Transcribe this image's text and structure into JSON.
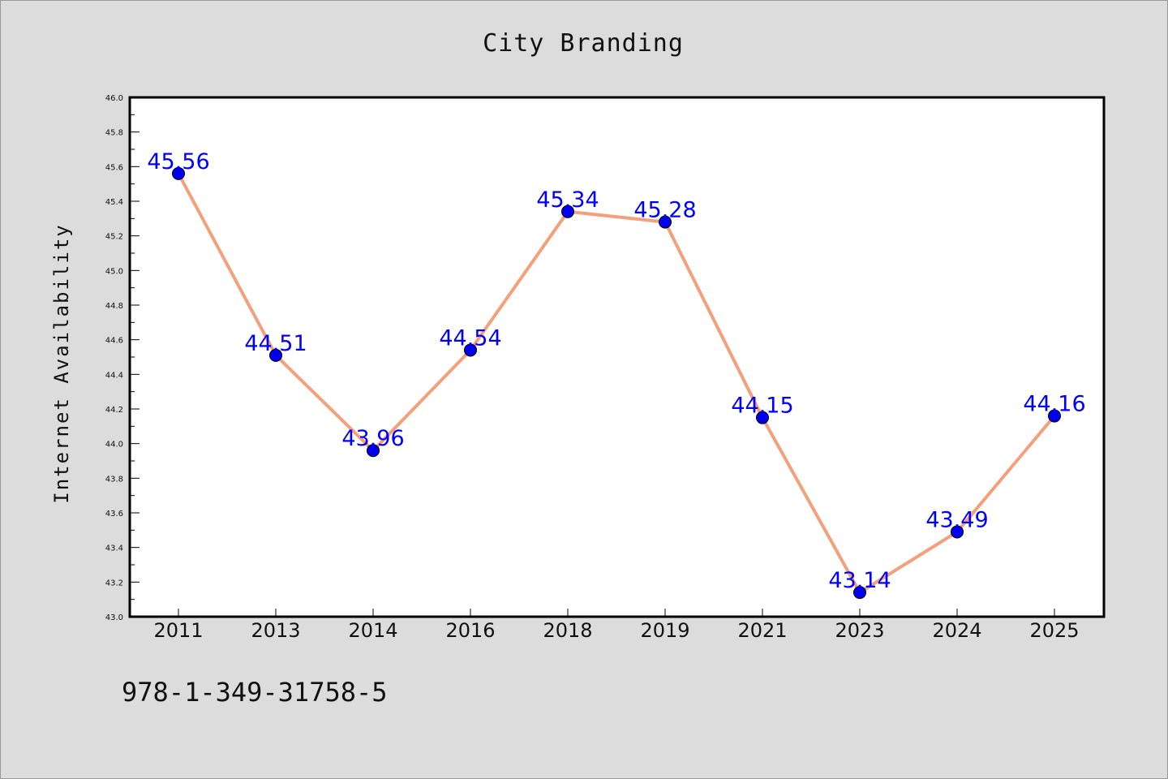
{
  "footer": {
    "isbn": "978-1-349-31758-5"
  },
  "chart_data": {
    "type": "line",
    "title": "City Branding",
    "xlabel": "",
    "ylabel": "Internet Availability",
    "categories": [
      "2011",
      "2013",
      "2014",
      "2016",
      "2018",
      "2019",
      "2021",
      "2023",
      "2024",
      "2025"
    ],
    "series": [
      {
        "values": [
          45.56,
          44.51,
          43.96,
          44.54,
          45.34,
          45.28,
          44.15,
          43.14,
          43.49,
          44.16
        ],
        "line_color": "#f4a07a",
        "marker_color": "#0000ee",
        "label_color": "#0000ff"
      }
    ],
    "data_labels": [
      "45.56",
      "44.51",
      "43.96",
      "44.54",
      "45.34",
      "45.28",
      "44.15",
      "43.14",
      "43.49",
      "44.16"
    ],
    "ylim": [
      43.0,
      46.0
    ],
    "yticks": [
      "43.0",
      "43.2",
      "43.4",
      "43.6",
      "43.8",
      "44.0",
      "44.2",
      "44.4",
      "44.6",
      "44.8",
      "45.0",
      "45.2",
      "45.4",
      "45.6",
      "45.8",
      "46.0"
    ],
    "grid": false,
    "legend": "none",
    "background": "#dcdcdc",
    "plot_background": "#ffffff"
  }
}
